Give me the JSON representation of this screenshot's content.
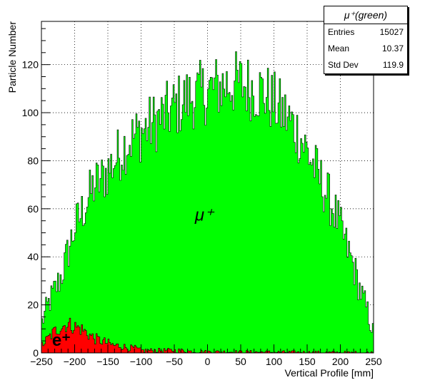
{
  "chart_data": {
    "type": "histogram",
    "xlabel": "Vertical Profile [mm]",
    "ylabel": "Particle Number",
    "xlim": [
      -250,
      250
    ],
    "ylim": [
      0,
      138
    ],
    "bin_width": 2,
    "x_ticks": [
      -250,
      -200,
      -150,
      -100,
      -50,
      0,
      50,
      100,
      150,
      200,
      250
    ],
    "x_tick_labels": [
      "−250",
      "−200",
      "−150",
      "−100",
      "−50",
      "0",
      "50",
      "100",
      "150",
      "200",
      "250"
    ],
    "y_ticks": [
      0,
      20,
      40,
      60,
      80,
      100,
      120
    ],
    "grid": true,
    "series": [
      {
        "name": "μ⁺",
        "color": "#00ff00",
        "envelope": [
          [
            -250,
            12
          ],
          [
            -240,
            20
          ],
          [
            -230,
            26
          ],
          [
            -220,
            32
          ],
          [
            -210,
            42
          ],
          [
            -200,
            52
          ],
          [
            -190,
            58
          ],
          [
            -180,
            64
          ],
          [
            -170,
            70
          ],
          [
            -160,
            72
          ],
          [
            -150,
            76
          ],
          [
            -140,
            80
          ],
          [
            -130,
            84
          ],
          [
            -120,
            88
          ],
          [
            -110,
            90
          ],
          [
            -100,
            92
          ],
          [
            -90,
            94
          ],
          [
            -80,
            96
          ],
          [
            -70,
            98
          ],
          [
            -60,
            100
          ],
          [
            -50,
            102
          ],
          [
            -40,
            104
          ],
          [
            -30,
            106
          ],
          [
            -20,
            107
          ],
          [
            -10,
            108
          ],
          [
            0,
            109
          ],
          [
            10,
            110
          ],
          [
            20,
            111
          ],
          [
            30,
            112
          ],
          [
            40,
            112
          ],
          [
            50,
            112
          ],
          [
            60,
            111
          ],
          [
            70,
            110
          ],
          [
            80,
            109
          ],
          [
            90,
            107
          ],
          [
            100,
            104
          ],
          [
            110,
            101
          ],
          [
            120,
            98
          ],
          [
            130,
            94
          ],
          [
            140,
            90
          ],
          [
            150,
            84
          ],
          [
            160,
            78
          ],
          [
            170,
            72
          ],
          [
            180,
            66
          ],
          [
            190,
            60
          ],
          [
            200,
            52
          ],
          [
            210,
            44
          ],
          [
            220,
            36
          ],
          [
            230,
            26
          ],
          [
            240,
            18
          ],
          [
            250,
            8
          ]
        ]
      },
      {
        "name": "e⁺",
        "color": "#ff0000",
        "envelope": [
          [
            -250,
            3
          ],
          [
            -240,
            6
          ],
          [
            -230,
            9
          ],
          [
            -220,
            11
          ],
          [
            -210,
            12
          ],
          [
            -200,
            11
          ],
          [
            -190,
            10
          ],
          [
            -180,
            8
          ],
          [
            -170,
            6
          ],
          [
            -160,
            5
          ],
          [
            -150,
            4
          ],
          [
            -140,
            3
          ],
          [
            -130,
            3
          ],
          [
            -120,
            2
          ],
          [
            -110,
            2
          ],
          [
            -100,
            1
          ],
          [
            -80,
            1
          ],
          [
            -60,
            1
          ],
          [
            -40,
            1
          ],
          [
            -20,
            0.5
          ],
          [
            0,
            0.5
          ],
          [
            250,
            0
          ]
        ]
      }
    ],
    "annotations": [
      {
        "text": "μ⁺",
        "x": -5,
        "y": 55,
        "color": "#000000"
      },
      {
        "text": "e⁺",
        "x": -220,
        "y": 3,
        "color": "#000000"
      }
    ]
  },
  "stats": {
    "title": "μ⁺(green)",
    "rows": [
      {
        "label": "Entries",
        "value": "15027"
      },
      {
        "label": "Mean",
        "value": "10.37"
      },
      {
        "label": "Std Dev",
        "value": "119.9"
      }
    ]
  }
}
